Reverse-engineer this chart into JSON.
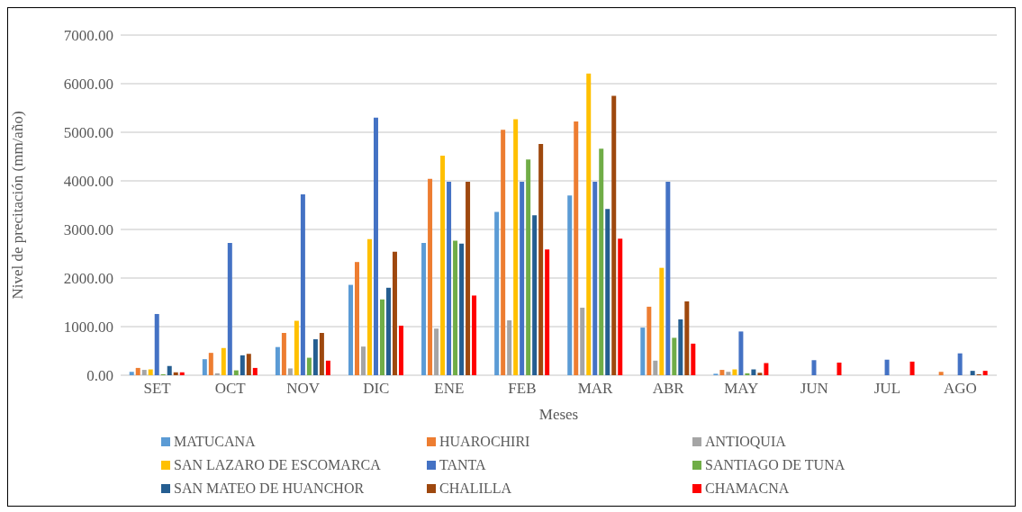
{
  "chart_data": {
    "type": "bar",
    "xlabel": "Meses",
    "ylabel": "Nivel de precitación (mm/año)",
    "categories": [
      "SET",
      "OCT",
      "NOV",
      "DIC",
      "ENE",
      "FEB",
      "MAR",
      "ABR",
      "MAY",
      "JUN",
      "JUL",
      "AGO"
    ],
    "series": [
      {
        "name": "MATUCANA",
        "color": "#5b9bd5",
        "values": [
          70,
          330,
          580,
          1860,
          2720,
          3360,
          3700,
          980,
          30,
          0,
          0,
          0
        ]
      },
      {
        "name": "HUAROCHIRI",
        "color": "#ed7d31",
        "values": [
          150,
          460,
          870,
          2330,
          4040,
          5050,
          5220,
          1410,
          110,
          0,
          0,
          70
        ]
      },
      {
        "name": "ANTIOQUIA",
        "color": "#a5a5a5",
        "values": [
          110,
          40,
          140,
          590,
          960,
          1130,
          1390,
          300,
          70,
          0,
          0,
          0
        ]
      },
      {
        "name": "SAN LAZARO DE ESCOMARCA",
        "color": "#ffc000",
        "values": [
          120,
          560,
          1120,
          2800,
          4520,
          5270,
          6210,
          2210,
          120,
          0,
          0,
          0
        ]
      },
      {
        "name": "TANTA",
        "color": "#4472c4",
        "values": [
          1260,
          2720,
          3720,
          5300,
          3980,
          3980,
          3980,
          3980,
          900,
          310,
          320,
          450
        ]
      },
      {
        "name": "SANTIAGO DE TUNA",
        "color": "#70ad47",
        "values": [
          20,
          100,
          360,
          1560,
          2770,
          4440,
          4660,
          770,
          40,
          0,
          0,
          0
        ]
      },
      {
        "name": "SAN MATEO DE HUANCHOR",
        "color": "#255e91",
        "values": [
          190,
          410,
          740,
          1800,
          2710,
          3290,
          3420,
          1150,
          120,
          0,
          0,
          90
        ]
      },
      {
        "name": "CHALILLA",
        "color": "#9e480e",
        "values": [
          60,
          440,
          870,
          2540,
          3980,
          4760,
          5750,
          1520,
          50,
          0,
          0,
          20
        ]
      },
      {
        "name": "CHAMACNA",
        "color": "#ff0000",
        "values": [
          60,
          150,
          300,
          1020,
          1640,
          2590,
          2810,
          650,
          250,
          260,
          280,
          90
        ]
      }
    ],
    "ylim": [
      0,
      7000
    ],
    "yticks": [
      {
        "value": 0,
        "label": "0.00"
      },
      {
        "value": 1000,
        "label": "1000.00"
      },
      {
        "value": 2000,
        "label": "2000.00"
      },
      {
        "value": 3000,
        "label": "3000.00"
      },
      {
        "value": 4000,
        "label": "4000.00"
      },
      {
        "value": 5000,
        "label": "5000.00"
      },
      {
        "value": 6000,
        "label": "6000.00"
      },
      {
        "value": 7000,
        "label": "7000.00"
      }
    ],
    "grid": "y",
    "legend": "bottom"
  }
}
